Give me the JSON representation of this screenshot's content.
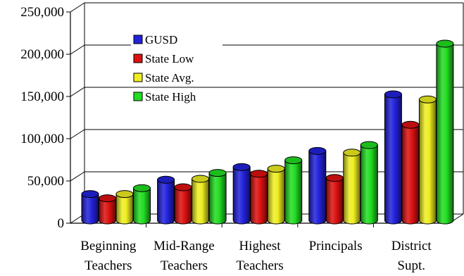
{
  "chart_data": {
    "type": "bar",
    "style": "3d-cylinder",
    "categories": [
      [
        "Beginning",
        "Teachers"
      ],
      [
        "Mid-Range",
        "Teachers"
      ],
      [
        "Highest",
        "Teachers"
      ],
      [
        "Principals"
      ],
      [
        "District",
        "Supt."
      ]
    ],
    "series": [
      {
        "name": "GUSD",
        "color": "#2222dd",
        "values": [
          32000,
          49000,
          64000,
          83000,
          150000
        ]
      },
      {
        "name": "State Low",
        "color": "#dd1111",
        "values": [
          27000,
          40000,
          56000,
          51000,
          114000
        ]
      },
      {
        "name": "State Avg.",
        "color": "#eeee22",
        "values": [
          32000,
          50000,
          62000,
          81000,
          144000
        ]
      },
      {
        "name": "State High",
        "color": "#22dd22",
        "values": [
          39000,
          57000,
          72000,
          90000,
          210000
        ]
      }
    ],
    "ylim": [
      0,
      250000
    ],
    "yticks": [
      0,
      50000,
      100000,
      150000,
      200000,
      250000
    ],
    "ytick_labels": [
      "0",
      "50,000",
      "100,000",
      "150,000",
      "200,000",
      "250,000"
    ],
    "grid": true,
    "legend": "top-left-inside",
    "title": "",
    "xlabel": "",
    "ylabel": ""
  }
}
